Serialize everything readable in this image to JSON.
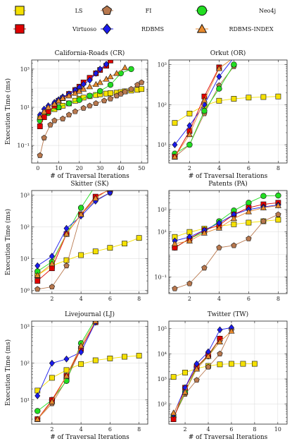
{
  "legend": [
    {
      "key": "LS",
      "label": "LS",
      "color": "#f5e100",
      "marker": "square"
    },
    {
      "key": "FI",
      "label": "FI",
      "color": "#b8784e",
      "marker": "pentagon"
    },
    {
      "key": "NEO",
      "label": "Neo4j",
      "color": "#22dd22",
      "marker": "circle"
    },
    {
      "key": "VIR",
      "label": "Virtuoso",
      "color": "#e00000",
      "marker": "square"
    },
    {
      "key": "RDB",
      "label": "RDBMS",
      "color": "#1a1aee",
      "marker": "diamond"
    },
    {
      "key": "RDBI",
      "label": "RDBMS-INDEX",
      "color": "#e88a2e",
      "marker": "triangle"
    }
  ],
  "chart_data": [
    {
      "type": "line",
      "title": "California-Roads (CR)",
      "xlabel": "# of Traversal Iterations",
      "ylabel": "Execution Time (ms)",
      "xlim": [
        -3,
        53
      ],
      "ylim": [
        0.012,
        3000
      ],
      "yscale": "log",
      "xticks": [
        0,
        10,
        20,
        30,
        40,
        50
      ],
      "xtick_labels": [
        "0",
        "10",
        "20",
        "30",
        "40",
        "50"
      ],
      "yticks": [
        0.1,
        10,
        1000
      ],
      "ytick_labels": [
        "10⁻¹",
        "10¹",
        "10³"
      ],
      "series": [
        {
          "key": "LS",
          "x": [
            1,
            3,
            5,
            8,
            10,
            12,
            15,
            18,
            20,
            22,
            25,
            28,
            30,
            33,
            35,
            38,
            40,
            42,
            45,
            48,
            50
          ],
          "y": [
            2.5,
            4,
            6,
            8,
            10,
            12,
            16,
            22,
            28,
            32,
            38,
            44,
            48,
            52,
            55,
            58,
            62,
            68,
            75,
            82,
            90
          ]
        },
        {
          "key": "FI",
          "x": [
            1,
            3,
            6,
            8,
            12,
            15,
            18,
            22,
            25,
            28,
            32,
            35,
            38,
            40,
            42,
            45,
            48,
            50
          ],
          "y": [
            0.03,
            0.25,
            1.2,
            2,
            2.5,
            4,
            6,
            9,
            12,
            16,
            22,
            28,
            40,
            50,
            65,
            90,
            150,
            200
          ]
        },
        {
          "key": "NEO",
          "x": [
            1,
            5,
            10,
            15,
            20,
            25,
            30,
            35,
            40,
            45
          ],
          "y": [
            2,
            5,
            10,
            16,
            24,
            40,
            70,
            150,
            600,
            1000
          ]
        },
        {
          "key": "VIR",
          "x": [
            1,
            3,
            5,
            8,
            10,
            12,
            15,
            18,
            20,
            22,
            25,
            28,
            30,
            33,
            35
          ],
          "y": [
            1,
            3,
            6,
            12,
            22,
            30,
            50,
            80,
            120,
            200,
            350,
            600,
            900,
            1500,
            2800
          ]
        },
        {
          "key": "RDB",
          "x": [
            1,
            3,
            5,
            8,
            10,
            12,
            15,
            18,
            20,
            22,
            25,
            28,
            30,
            33
          ],
          "y": [
            4,
            8,
            12,
            18,
            25,
            35,
            50,
            80,
            110,
            160,
            260,
            600,
            1000,
            1800
          ]
        },
        {
          "key": "RDBI",
          "x": [
            1,
            3,
            5,
            8,
            10,
            12,
            15,
            18,
            20,
            22,
            25,
            28,
            30,
            33,
            35,
            38,
            42
          ],
          "y": [
            3,
            6,
            10,
            15,
            22,
            30,
            40,
            55,
            70,
            90,
            120,
            160,
            200,
            300,
            400,
            600,
            1200
          ]
        }
      ]
    },
    {
      "type": "line",
      "title": "Orkut (OR)",
      "xlabel": "# of Traversal Iterations",
      "ylabel": "",
      "xlim": [
        0.6,
        8.6
      ],
      "ylim": [
        3.5,
        1300
      ],
      "yscale": "log",
      "xticks": [
        2,
        4,
        6,
        8
      ],
      "xtick_labels": [
        "2",
        "4",
        "6",
        "8"
      ],
      "yticks": [
        10,
        100,
        1000
      ],
      "ytick_labels": [
        "10¹",
        "10²",
        "10³"
      ],
      "series": [
        {
          "key": "LS",
          "x": [
            1,
            2,
            3,
            4,
            5,
            6,
            7,
            8
          ],
          "y": [
            35,
            60,
            95,
            125,
            140,
            150,
            155,
            160
          ]
        },
        {
          "key": "FI",
          "x": [
            1,
            2,
            3,
            4,
            5
          ],
          "y": [
            5,
            10,
            60,
            300,
            900
          ]
        },
        {
          "key": "NEO",
          "x": [
            1,
            2,
            3,
            4,
            5
          ],
          "y": [
            6,
            10,
            70,
            250,
            1000
          ]
        },
        {
          "key": "VIR",
          "x": [
            1,
            2,
            3,
            4
          ],
          "y": [
            5,
            22,
            160,
            850
          ]
        },
        {
          "key": "RDB",
          "x": [
            1,
            2,
            3,
            4,
            5
          ],
          "y": [
            10,
            30,
            100,
            500,
            1500
          ]
        },
        {
          "key": "RDBI",
          "x": [
            1,
            2,
            3,
            4,
            5
          ],
          "y": [
            5,
            18,
            130,
            800,
            1500
          ]
        }
      ]
    },
    {
      "type": "line",
      "title": "Skitter (SK)",
      "xlabel": "",
      "ylabel": "Execution Time (ms)",
      "xlim": [
        0.6,
        8.6
      ],
      "ylim": [
        0.8,
        1400
      ],
      "yscale": "log",
      "xticks": [
        2,
        4,
        6,
        8
      ],
      "xtick_labels": [
        "2",
        "4",
        "6",
        "8"
      ],
      "yticks": [
        1,
        10,
        100,
        1000
      ],
      "ytick_labels": [
        "10⁰",
        "10¹",
        "10²",
        "10³"
      ],
      "series": [
        {
          "key": "LS",
          "x": [
            1,
            2,
            3,
            4,
            5,
            6,
            7,
            8
          ],
          "y": [
            3,
            6,
            9,
            13,
            17,
            22,
            30,
            45
          ]
        },
        {
          "key": "FI",
          "x": [
            1,
            2,
            3,
            4,
            5,
            6
          ],
          "y": [
            1.1,
            1.3,
            6,
            250,
            700,
            1200
          ]
        },
        {
          "key": "NEO",
          "x": [
            1,
            2,
            3,
            4,
            5
          ],
          "y": [
            4,
            8,
            60,
            400,
            2000
          ]
        },
        {
          "key": "VIR",
          "x": [
            1,
            2,
            3,
            4,
            5,
            6
          ],
          "y": [
            2,
            5,
            60,
            250,
            900,
            1500
          ]
        },
        {
          "key": "RDB",
          "x": [
            1,
            2,
            3,
            4,
            5,
            6
          ],
          "y": [
            6,
            12,
            90,
            220,
            650,
            1200
          ]
        },
        {
          "key": "RDBI",
          "x": [
            1,
            2,
            3,
            4,
            5,
            6
          ],
          "y": [
            3,
            7,
            60,
            250,
            800,
            1600
          ]
        }
      ]
    },
    {
      "type": "line",
      "title": "Patents (PA)",
      "xlabel": "",
      "ylabel": "",
      "xlim": [
        0.6,
        8.6
      ],
      "ylim": [
        0.018,
        700
      ],
      "yscale": "log",
      "xticks": [
        2,
        4,
        6,
        8
      ],
      "xtick_labels": [
        "2",
        "4",
        "6",
        "8"
      ],
      "yticks": [
        0.1,
        10,
        100
      ],
      "ytick_labels": [
        "10⁻¹",
        "10¹",
        "10²"
      ],
      "series": [
        {
          "key": "LS",
          "x": [
            1,
            2,
            3,
            4,
            5,
            6,
            7,
            8
          ],
          "y": [
            6,
            10,
            14,
            18,
            22,
            26,
            30,
            35
          ]
        },
        {
          "key": "FI",
          "x": [
            1,
            2,
            3,
            4,
            5,
            6,
            7,
            8
          ],
          "y": [
            0.03,
            0.05,
            0.25,
            2,
            2.5,
            5,
            30,
            60
          ]
        },
        {
          "key": "NEO",
          "x": [
            1,
            2,
            3,
            4,
            5,
            6,
            7,
            8
          ],
          "y": [
            2,
            5,
            10,
            30,
            90,
            200,
            400,
            420
          ]
        },
        {
          "key": "VIR",
          "x": [
            1,
            2,
            3,
            4,
            5,
            6,
            7,
            8
          ],
          "y": [
            2,
            5,
            12,
            20,
            60,
            120,
            170,
            200
          ]
        },
        {
          "key": "RDB",
          "x": [
            1,
            2,
            3,
            4,
            5,
            6,
            7,
            8
          ],
          "y": [
            4,
            6,
            12,
            25,
            60,
            100,
            130,
            160
          ]
        },
        {
          "key": "RDBI",
          "x": [
            1,
            2,
            3,
            4,
            5,
            6,
            7,
            8
          ],
          "y": [
            3,
            4,
            9,
            15,
            40,
            80,
            120,
            150
          ]
        }
      ]
    },
    {
      "type": "line",
      "title": "Livejournal (LJ)",
      "xlabel": "# of Traversal Iterations",
      "ylabel": "Execution Time (ms)",
      "xlim": [
        0.6,
        8.6
      ],
      "ylim": [
        2.2,
        1400
      ],
      "yscale": "log",
      "xticks": [
        2,
        4,
        6,
        8
      ],
      "xtick_labels": [
        "2",
        "4",
        "6",
        "8"
      ],
      "yticks": [
        10,
        100,
        1000
      ],
      "ytick_labels": [
        "10¹",
        "10²",
        "10³"
      ],
      "series": [
        {
          "key": "LS",
          "x": [
            1,
            2,
            3,
            4,
            5,
            6,
            7,
            8
          ],
          "y": [
            18,
            40,
            65,
            95,
            120,
            135,
            150,
            160
          ]
        },
        {
          "key": "FI",
          "x": [
            1,
            2,
            3,
            4,
            5
          ],
          "y": [
            3,
            8,
            35,
            250,
            1300
          ]
        },
        {
          "key": "NEO",
          "x": [
            1,
            2,
            3,
            4,
            5
          ],
          "y": [
            5,
            10,
            33,
            350,
            1600
          ]
        },
        {
          "key": "VIR",
          "x": [
            1,
            2,
            3,
            4,
            5
          ],
          "y": [
            3,
            10,
            45,
            250,
            1300
          ]
        },
        {
          "key": "RDB",
          "x": [
            1,
            2,
            3,
            4,
            5
          ],
          "y": [
            13,
            100,
            130,
            200,
            1300
          ]
        },
        {
          "key": "RDBI",
          "x": [
            1,
            2,
            3,
            4,
            5
          ],
          "y": [
            3,
            9,
            45,
            300,
            1400
          ]
        }
      ]
    },
    {
      "type": "line",
      "title": "Twitter (TW)",
      "xlabel": "# of Traversal Iterations",
      "ylabel": "",
      "xlim": [
        0.6,
        10.8
      ],
      "ylim": [
        16,
        200000
      ],
      "yscale": "log",
      "xticks": [
        2,
        4,
        6,
        8,
        10
      ],
      "xtick_labels": [
        "2",
        "4",
        "6",
        "8",
        "10"
      ],
      "yticks": [
        100,
        1000,
        10000,
        100000
      ],
      "ytick_labels": [
        "10²",
        "10³",
        "10⁴",
        "10⁵"
      ],
      "series": [
        {
          "key": "LS",
          "x": [
            1,
            2,
            3,
            4,
            5,
            6,
            7,
            8
          ],
          "y": [
            1200,
            1800,
            2600,
            3300,
            3800,
            4000,
            4000,
            4000
          ]
        },
        {
          "key": "FI",
          "x": [
            1,
            2,
            3,
            4,
            5,
            6
          ],
          "y": [
            30,
            250,
            900,
            3000,
            10000,
            90000
          ]
        },
        {
          "key": "NEO",
          "x": [
            1,
            2,
            3,
            4,
            5
          ],
          "y": [
            30,
            300,
            3000,
            8000,
            40000
          ]
        },
        {
          "key": "VIR",
          "x": [
            1,
            2,
            3,
            4,
            5
          ],
          "y": [
            25,
            450,
            3000,
            9000,
            40000
          ]
        },
        {
          "key": "RDB",
          "x": [
            1,
            2,
            3,
            4,
            5,
            6
          ],
          "y": [
            40,
            450,
            4000,
            12000,
            90000,
            110000
          ]
        },
        {
          "key": "RDBI",
          "x": [
            1,
            2,
            3,
            4,
            5,
            6
          ],
          "y": [
            45,
            300,
            2500,
            8000,
            30000,
            80000
          ]
        }
      ]
    }
  ]
}
